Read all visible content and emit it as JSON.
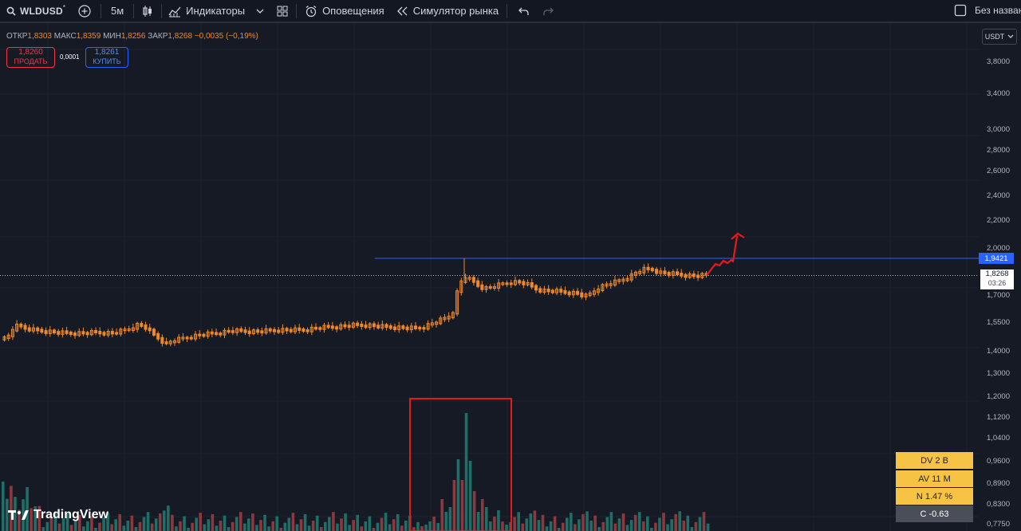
{
  "toolbar": {
    "symbol": "WLDUSD",
    "symbol_superscript": "*",
    "interval": "5м",
    "indicators_label": "Индикаторы",
    "alerts_label": "Оповещения",
    "replay_label": "Симулятор рынка",
    "layout_name": "Без назван"
  },
  "legend": {
    "open_label": "ОТКР",
    "open_value": "1,8303",
    "high_label": "МАКС",
    "high_value": "1,8359",
    "low_label": "МИН",
    "low_value": "1,8256",
    "close_label": "ЗАКР",
    "close_value": "1,8268",
    "change": "−0,0035 (−0,19%)"
  },
  "trade": {
    "sell_price": "1,8260",
    "sell_label": "ПРОДАТЬ",
    "spread": "0,0001",
    "buy_price": "1,8261",
    "buy_label": "КУПИТЬ"
  },
  "currency": "USDT",
  "price_scale": [
    "3,8000",
    "3,4000",
    "3,0000",
    "2,8000",
    "2,6000",
    "2,4000",
    "2,2000",
    "2,0000",
    "1,7000",
    "1,5500",
    "1,4000",
    "1,3000",
    "1,2000",
    "1,1200",
    "1,0400",
    "0,9600",
    "0,8900",
    "0,8300",
    "0,7750"
  ],
  "level_label": "1,9421",
  "last_price": {
    "price": "1,8268",
    "countdown": "03:26"
  },
  "indicator_table": [
    "DV 2 B",
    "AV 11 M",
    "N 1.47 %",
    "C  -0.63"
  ],
  "logo_text": "TradingView",
  "colors": {
    "background": "#161a25",
    "candle": "#f0882a",
    "level_line": "#2962ff",
    "volume_up": "#22ab94",
    "volume_down": "#f23645",
    "annotation": "#e51b1b",
    "indicator_bg": "#f6c344"
  },
  "icons": [
    "search-icon",
    "add-symbol-icon",
    "candles-icon",
    "indicators-icon",
    "chevron-down-icon",
    "layouts-icon",
    "alert-clock-icon",
    "replay-icon",
    "undo-icon",
    "redo-icon",
    "save-layout-icon"
  ]
}
